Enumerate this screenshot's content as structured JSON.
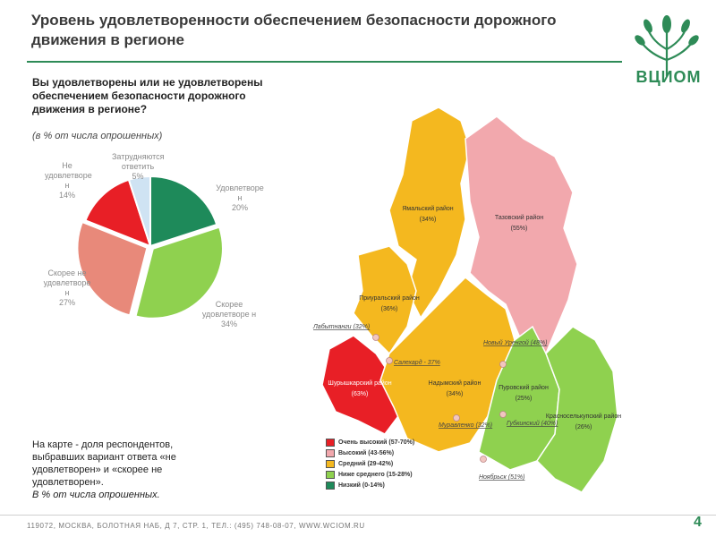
{
  "header": {
    "title": "Уровень удовлетворенности обеспечением безопасности дорожного движения в регионе",
    "logo_text": "ВЦИОМ"
  },
  "question": {
    "text": "Вы удовлетворены или не удовлетворены обеспечением безопасности дорожного движения в регионе?",
    "unit": "(в % от числа опрошенных)"
  },
  "chart_data": [
    {
      "type": "pie",
      "slices": [
        {
          "label": "Удовлетворе н",
          "value": 20,
          "value_label": "20%",
          "color": "#1e8a5a"
        },
        {
          "label": "Скорее удовлетворе н",
          "value": 34,
          "value_label": "34%",
          "color": "#8fd14f"
        },
        {
          "label": "Скорее не удовлетворе н",
          "value": 27,
          "value_label": "27%",
          "color": "#e8897a"
        },
        {
          "label": "Не удовлетворе н",
          "value": 14,
          "value_label": "14%",
          "color": "#e81f26"
        },
        {
          "label": "Затрудняются ответить",
          "value": 5,
          "value_label": "5%",
          "color": "#cfe3f3"
        }
      ]
    },
    {
      "type": "choropleth",
      "regions": [
        {
          "name": "Ямальский район",
          "value_label": "(34%)",
          "level": "Средний (29-42%)",
          "color": "#f4b81f"
        },
        {
          "name": "Тазовский район",
          "value_label": "(55%)",
          "level": "Высокий (43-56%)",
          "color": "#f2a8ad"
        },
        {
          "name": "Приуральский район",
          "value_label": "(36%)",
          "level": "Средний (29-42%)",
          "color": "#f4b81f"
        },
        {
          "name": "Шурышкарский район",
          "value_label": "(63%)",
          "level": "Очень высокий (57-70%)",
          "color": "#e81f26"
        },
        {
          "name": "Надымский район",
          "value_label": "(34%)",
          "level": "Средний (29-42%)",
          "color": "#f4b81f"
        },
        {
          "name": "Пуровский район",
          "value_label": "(25%)",
          "level": "Ниже среднего (15-28%)",
          "color": "#8fd14f"
        },
        {
          "name": "Красноселькупский район",
          "value_label": "(26%)",
          "level": "Ниже среднего (15-28%)",
          "color": "#8fd14f"
        }
      ],
      "cities": [
        {
          "name": "Лабытнанги (32%)"
        },
        {
          "name": "Салехард - 37%"
        },
        {
          "name": "Новый Уренгой (48%)"
        },
        {
          "name": "Губкинский (40%)"
        },
        {
          "name": "Муравленко (32%)"
        },
        {
          "name": "Ноябрьск (51%)"
        }
      ],
      "legend": [
        {
          "label": "Очень высокий (57-70%)",
          "color": "#e81f26"
        },
        {
          "label": "Высокий (43-56%)",
          "color": "#f2a8ad"
        },
        {
          "label": "Средний (29-42%)",
          "color": "#f4b81f"
        },
        {
          "label": "Ниже среднего (15-28%)",
          "color": "#8fd14f"
        },
        {
          "label": "Низкий (0-14%)",
          "color": "#1e8a5a"
        }
      ]
    }
  ],
  "note": {
    "text": "На карте - доля респондентов, выбравших вариант ответа «не удовлетворен» и «скорее не удовлетворен».",
    "unit": "В % от числа опрошенных."
  },
  "footer": {
    "address": "119072, МОСКВА, БОЛОТНАЯ НАБ, Д 7, СТР. 1, ТЕЛ.: (495) 748-08-07, WWW.WCIOM.RU",
    "page_number": "4"
  }
}
